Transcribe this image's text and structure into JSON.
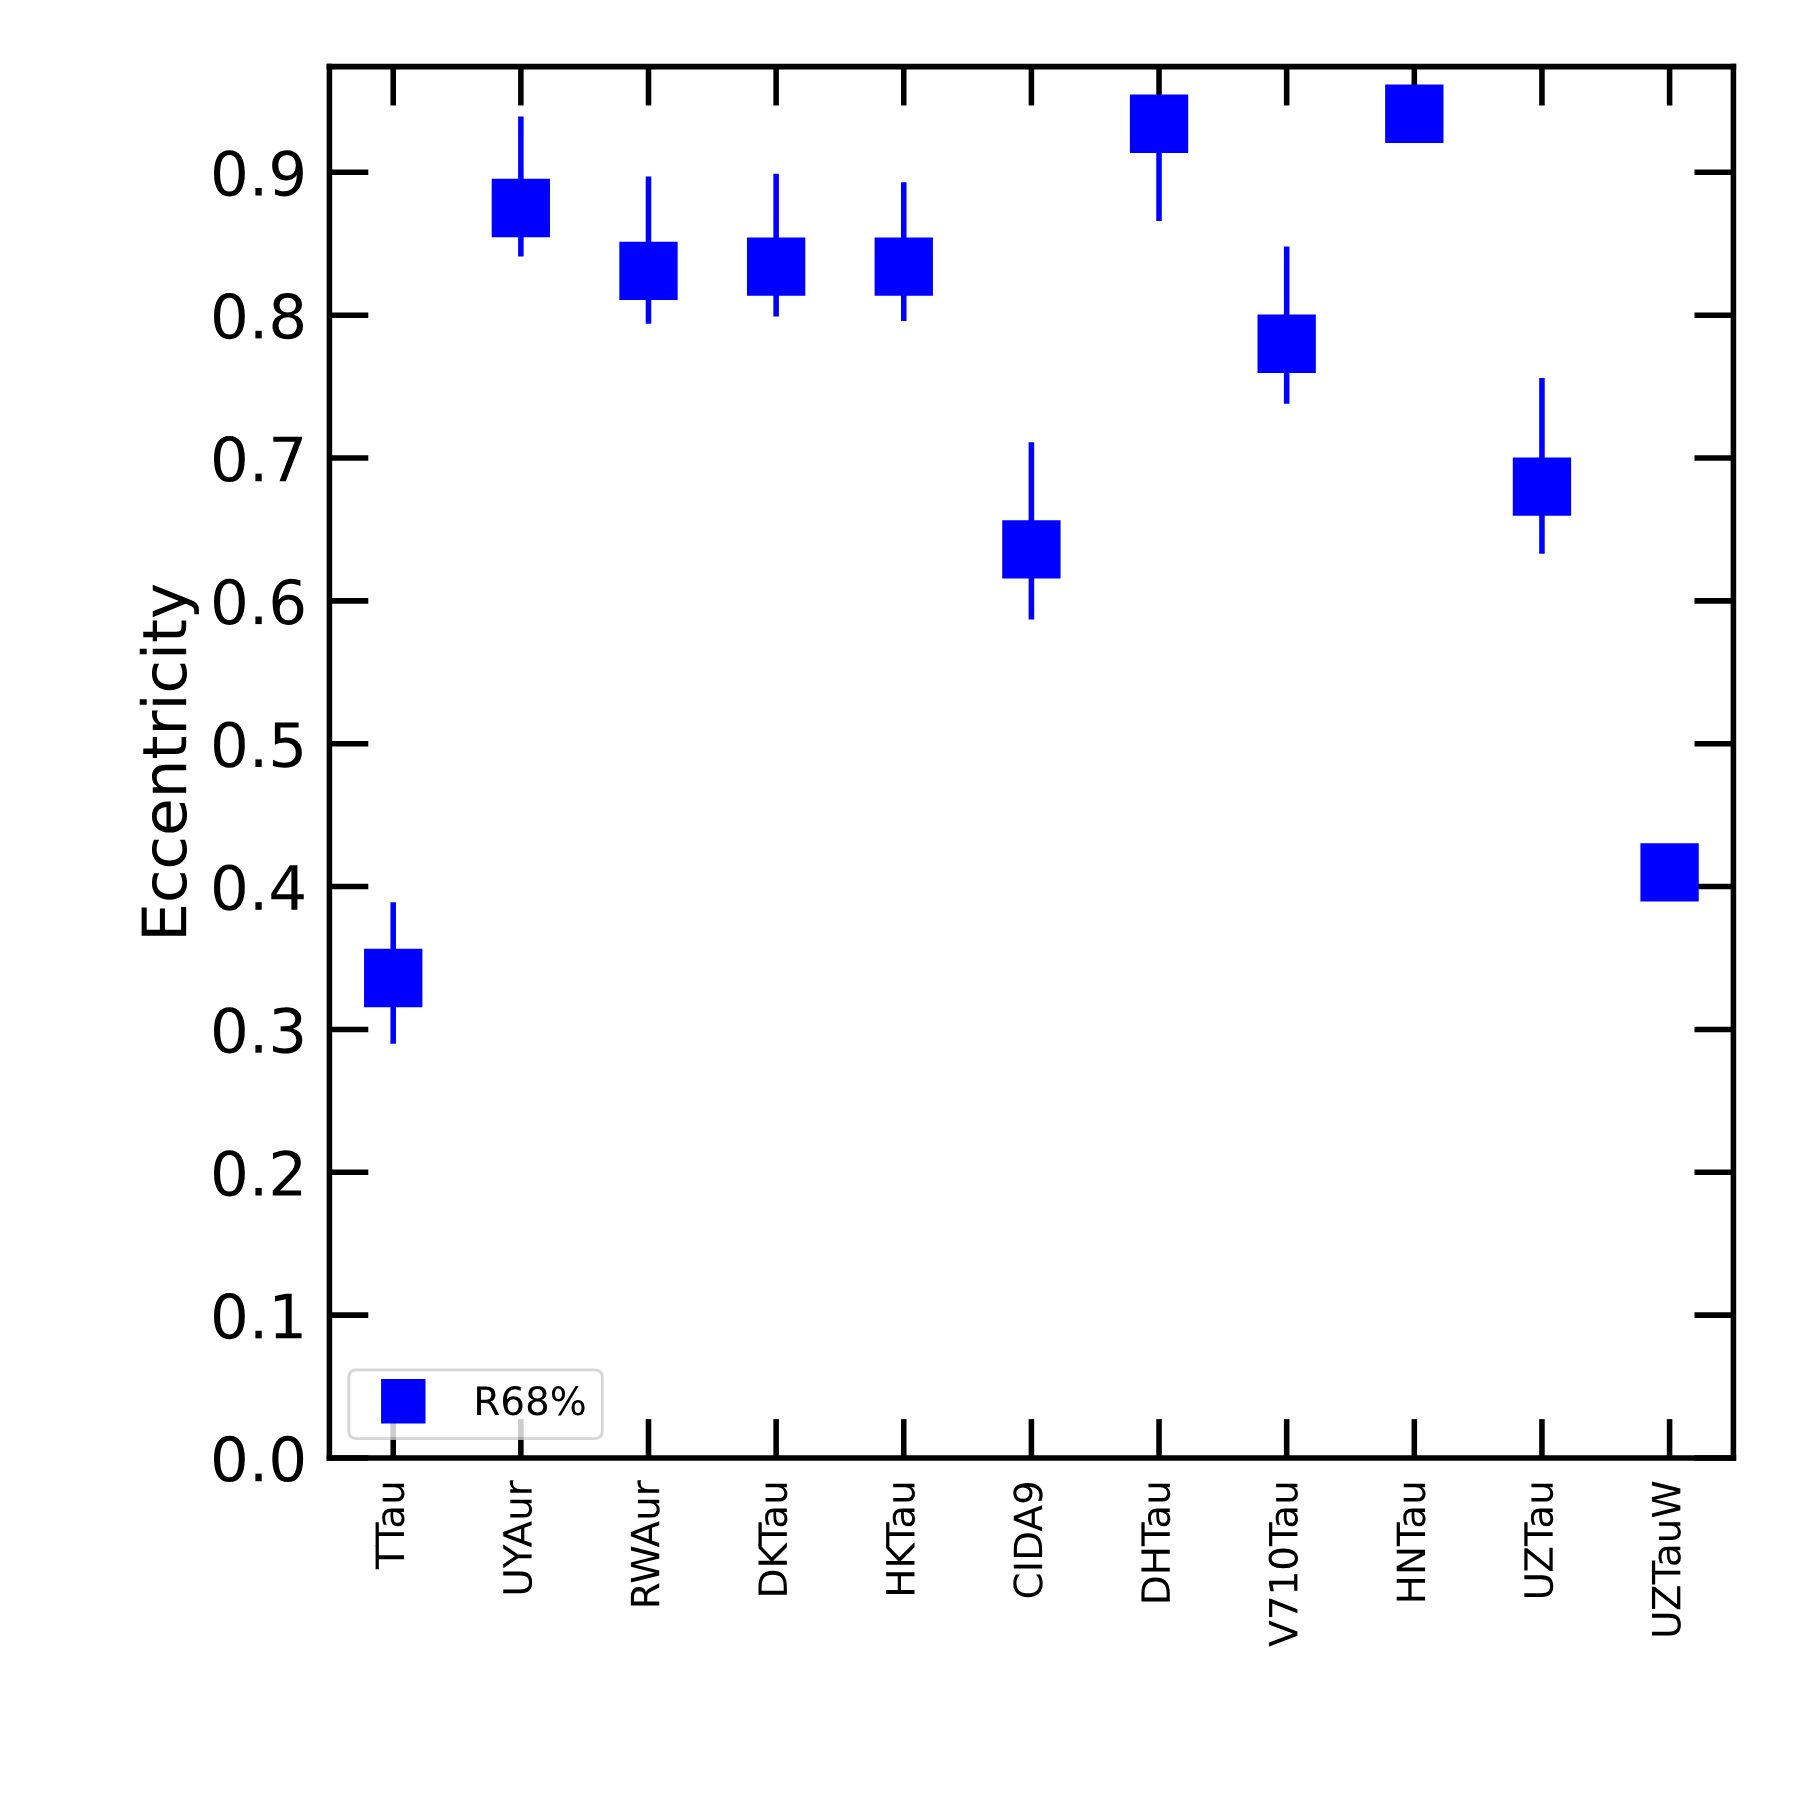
{
  "chart_data": {
    "type": "scatter",
    "ylabel": "Eccentricity",
    "categories": [
      "TTau",
      "UYAur",
      "RWAur",
      "DKTau",
      "HKTau",
      "CIDA9",
      "DHTau",
      "V710Tau",
      "HNTau",
      "UZTau",
      "UZTauW"
    ],
    "series": [
      {
        "name": "R68%",
        "color": "#0000ff",
        "values": [
          0.336,
          0.875,
          0.831,
          0.834,
          0.834,
          0.636,
          0.934,
          0.78,
          0.941,
          0.68,
          0.41
        ],
        "errors": [
          [
            0.29,
            0.389
          ],
          [
            0.841,
            0.939
          ],
          [
            0.794,
            0.897
          ],
          [
            0.799,
            0.899
          ],
          [
            0.796,
            0.893
          ],
          [
            0.587,
            0.711
          ],
          [
            0.866,
            0.95
          ],
          [
            0.738,
            0.848
          ],
          null,
          [
            0.633,
            0.756
          ],
          null
        ]
      }
    ],
    "ylim": [
      0,
      0.974
    ],
    "yticks": [
      {
        "value": 0,
        "label": "0.0"
      },
      0.1,
      0.2,
      0.3,
      0.4,
      0.5,
      0.6,
      0.7,
      0.8,
      0.9
    ],
    "marker": "square",
    "legend": "bottom left",
    "grid": false
  }
}
